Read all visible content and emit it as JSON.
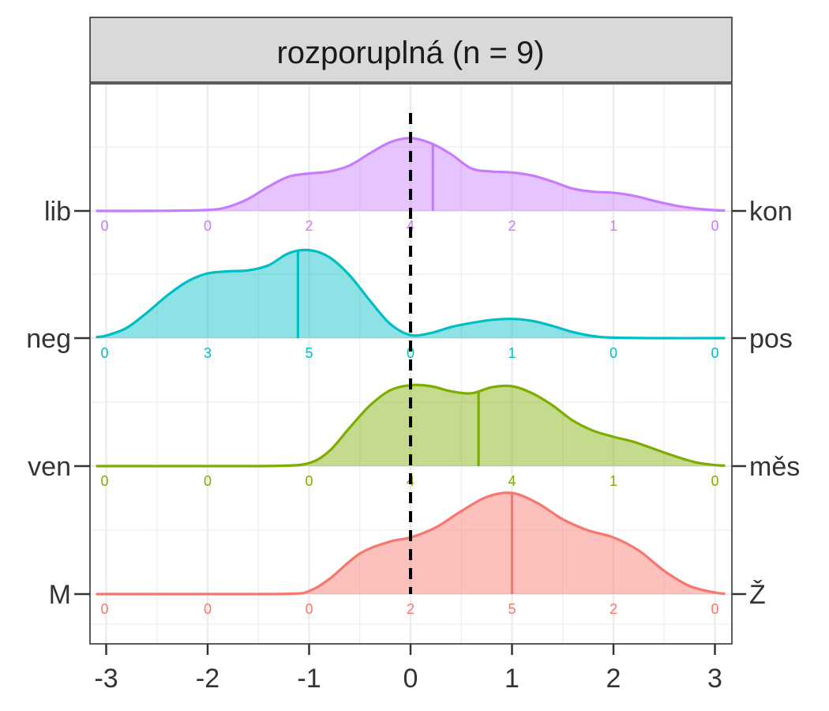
{
  "chart_data": {
    "type": "ridgeline",
    "title": "rozporuplná (n = 9)",
    "xlim": [
      -3,
      3
    ],
    "x_ticks": [
      "-3",
      "-2",
      "-1",
      "0",
      "1",
      "2",
      "3"
    ],
    "reference_line_x": 0,
    "grid": true,
    "series": [
      {
        "left_label": "M",
        "right_label": "Ž",
        "color": "#F8766D",
        "counts": [
          "0",
          "0",
          "0",
          "2",
          "5",
          "2",
          "0"
        ],
        "mean": 1.0,
        "peak_x": 1.0,
        "density": [
          [
            -3.1,
            0
          ],
          [
            -2,
            0
          ],
          [
            -1.2,
            0.003
          ],
          [
            -1,
            0.03
          ],
          [
            -0.8,
            0.15
          ],
          [
            -0.5,
            0.4
          ],
          [
            -0.2,
            0.52
          ],
          [
            0,
            0.56
          ],
          [
            0.25,
            0.66
          ],
          [
            0.5,
            0.82
          ],
          [
            0.75,
            0.96
          ],
          [
            1,
            1.0
          ],
          [
            1.25,
            0.9
          ],
          [
            1.5,
            0.74
          ],
          [
            1.75,
            0.63
          ],
          [
            2,
            0.56
          ],
          [
            2.25,
            0.43
          ],
          [
            2.5,
            0.23
          ],
          [
            2.75,
            0.08
          ],
          [
            3.0,
            0.015
          ],
          [
            3.1,
            0.005
          ]
        ]
      },
      {
        "left_label": "ven",
        "right_label": "měs",
        "color": "#7CAE00",
        "counts": [
          "0",
          "0",
          "0",
          "4",
          "4",
          "1",
          "0"
        ],
        "mean": 0.67,
        "peak_x": 1.0,
        "density": [
          [
            -3.1,
            0
          ],
          [
            -2,
            0
          ],
          [
            -1.3,
            0.003
          ],
          [
            -1,
            0.03
          ],
          [
            -0.8,
            0.15
          ],
          [
            -0.6,
            0.38
          ],
          [
            -0.4,
            0.6
          ],
          [
            -0.2,
            0.75
          ],
          [
            0,
            0.8
          ],
          [
            0.2,
            0.79
          ],
          [
            0.4,
            0.74
          ],
          [
            0.6,
            0.72
          ],
          [
            0.8,
            0.78
          ],
          [
            1,
            0.79
          ],
          [
            1.2,
            0.72
          ],
          [
            1.4,
            0.6
          ],
          [
            1.6,
            0.45
          ],
          [
            1.8,
            0.35
          ],
          [
            2,
            0.29
          ],
          [
            2.2,
            0.24
          ],
          [
            2.4,
            0.17
          ],
          [
            2.6,
            0.1
          ],
          [
            2.8,
            0.04
          ],
          [
            3,
            0.01
          ],
          [
            3.1,
            0.005
          ]
        ]
      },
      {
        "left_label": "neg",
        "right_label": "pos",
        "color": "#00BFC4",
        "counts": [
          "0",
          "3",
          "5",
          "0",
          "1",
          "0",
          "0"
        ],
        "mean": -1.11,
        "peak_x": -1.0,
        "density": [
          [
            -3.1,
            0.01
          ],
          [
            -3,
            0.025
          ],
          [
            -2.8,
            0.1
          ],
          [
            -2.6,
            0.25
          ],
          [
            -2.4,
            0.42
          ],
          [
            -2.2,
            0.56
          ],
          [
            -2,
            0.64
          ],
          [
            -1.8,
            0.66
          ],
          [
            -1.6,
            0.67
          ],
          [
            -1.4,
            0.72
          ],
          [
            -1.2,
            0.84
          ],
          [
            -1,
            0.87
          ],
          [
            -0.8,
            0.8
          ],
          [
            -0.6,
            0.62
          ],
          [
            -0.4,
            0.37
          ],
          [
            -0.2,
            0.14
          ],
          [
            0,
            0.03
          ],
          [
            0.2,
            0.05
          ],
          [
            0.4,
            0.11
          ],
          [
            0.6,
            0.15
          ],
          [
            0.8,
            0.18
          ],
          [
            1,
            0.19
          ],
          [
            1.2,
            0.17
          ],
          [
            1.4,
            0.12
          ],
          [
            1.6,
            0.06
          ],
          [
            1.8,
            0.02
          ],
          [
            2,
            0.005
          ],
          [
            2.5,
            0
          ],
          [
            3.1,
            0
          ]
        ]
      },
      {
        "left_label": "lib",
        "right_label": "kon",
        "color": "#C77CFF",
        "counts": [
          "0",
          "0",
          "2",
          "4",
          "2",
          "1",
          "0"
        ],
        "mean": 0.22,
        "peak_x": 0.0,
        "density": [
          [
            -3.1,
            0
          ],
          [
            -2.5,
            0.001
          ],
          [
            -2,
            0.01
          ],
          [
            -1.8,
            0.04
          ],
          [
            -1.6,
            0.12
          ],
          [
            -1.4,
            0.24
          ],
          [
            -1.2,
            0.34
          ],
          [
            -1,
            0.37
          ],
          [
            -0.8,
            0.39
          ],
          [
            -0.6,
            0.45
          ],
          [
            -0.4,
            0.57
          ],
          [
            -0.2,
            0.68
          ],
          [
            0,
            0.72
          ],
          [
            0.2,
            0.67
          ],
          [
            0.4,
            0.56
          ],
          [
            0.6,
            0.42
          ],
          [
            0.8,
            0.39
          ],
          [
            1,
            0.38
          ],
          [
            1.2,
            0.35
          ],
          [
            1.4,
            0.29
          ],
          [
            1.6,
            0.22
          ],
          [
            1.8,
            0.19
          ],
          [
            2,
            0.18
          ],
          [
            2.2,
            0.15
          ],
          [
            2.4,
            0.1
          ],
          [
            2.6,
            0.055
          ],
          [
            2.8,
            0.025
          ],
          [
            3,
            0.008
          ],
          [
            3.1,
            0.004
          ]
        ]
      }
    ]
  }
}
